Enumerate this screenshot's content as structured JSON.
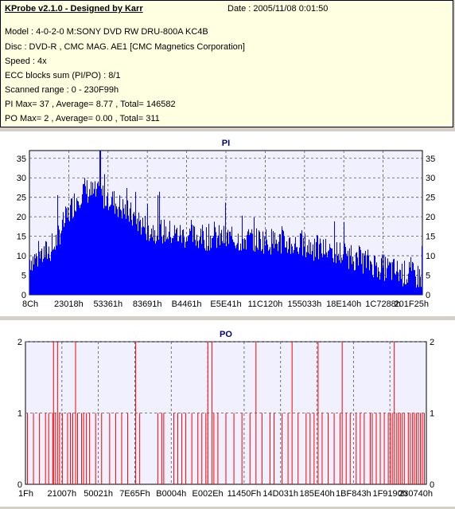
{
  "header": {
    "title": "KProbe v2.1.0 - Designed by Karr",
    "date": "Date : 2005/11/08 0:01:50",
    "lines": [
      "Model : 4-0-2-0 M:SONY    DVD RW DRU-800A  KC4B",
      "Disc : DVD-R , CMC MAG. AE1 [CMC Magnetics Corporation]",
      "Speed : 4x",
      "ECC blocks sum (PI/PO) : 8/1",
      "Scanned range : 0 - 230F99h",
      "PI Max= 37 , Average= 8.77 , Total= 146582",
      "PO Max= 2 , Average= 0.00 , Total= 311"
    ]
  },
  "chart_data": [
    {
      "type": "area",
      "title": "PI",
      "xlabel": "",
      "ylabel": "",
      "ylim": [
        0,
        37
      ],
      "yticks": [
        0,
        5,
        10,
        15,
        20,
        25,
        30,
        35
      ],
      "xticks": [
        "8Ch",
        "23018h",
        "53361h",
        "83691h",
        "B4461h",
        "E5E41h",
        "11C120h",
        "155033h",
        "18E140h",
        "1C7288h",
        "201F25h"
      ],
      "grid": true,
      "color": "#0000ff",
      "profile_x": [
        0,
        0.02,
        0.06,
        0.08,
        0.12,
        0.14,
        0.16,
        0.2,
        0.3,
        0.4,
        0.5,
        0.6,
        0.7,
        0.8,
        0.9,
        0.95,
        1.0
      ],
      "profile_y": [
        9,
        9.5,
        12,
        17,
        25,
        27,
        26,
        25,
        17,
        15,
        14.5,
        14,
        12.5,
        10.5,
        7,
        5.5,
        4.5
      ],
      "max": 37,
      "average": 8.77
    },
    {
      "type": "bar",
      "title": "PO",
      "xlabel": "",
      "ylabel": "",
      "ylim": [
        0,
        2
      ],
      "yticks": [
        0,
        1,
        2
      ],
      "xticks": [
        "1Fh",
        "21007h",
        "50021h",
        "7E65Fh",
        "B0004h",
        "E002Eh",
        "11450Fh",
        "14D031h",
        "185E40h",
        "1BF843h",
        "1F9190h",
        "230740h"
      ],
      "grid": true,
      "color": "#ff0000",
      "spikes_2": [
        0.07,
        0.08,
        0.125,
        0.275,
        0.455,
        0.465,
        0.575,
        0.665,
        0.73,
        0.79,
        0.92
      ],
      "spikes_1": [
        0.005,
        0.02,
        0.035,
        0.05,
        0.058,
        0.068,
        0.075,
        0.085,
        0.092,
        0.105,
        0.112,
        0.118,
        0.13,
        0.14,
        0.145,
        0.152,
        0.16,
        0.175,
        0.19,
        0.21,
        0.225,
        0.24,
        0.255,
        0.285,
        0.33,
        0.34,
        0.345,
        0.37,
        0.38,
        0.39,
        0.4,
        0.415,
        0.43,
        0.44,
        0.45,
        0.47,
        0.48,
        0.5,
        0.52,
        0.54,
        0.56,
        0.59,
        0.61,
        0.62,
        0.64,
        0.655,
        0.68,
        0.7,
        0.71,
        0.72,
        0.74,
        0.755,
        0.77,
        0.785,
        0.8,
        0.81,
        0.825,
        0.835,
        0.845,
        0.86,
        0.865,
        0.875,
        0.885,
        0.895,
        0.905,
        0.91,
        0.915,
        0.925,
        0.93,
        0.935,
        0.94,
        0.945,
        0.955,
        0.96,
        0.965,
        0.97,
        0.975,
        0.98,
        0.985,
        0.99,
        0.995
      ]
    }
  ]
}
